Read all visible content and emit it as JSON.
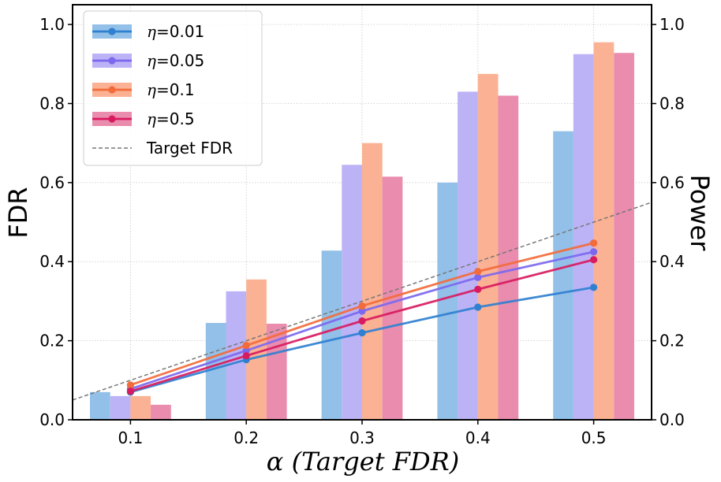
{
  "chart_data": {
    "type": "bar+line",
    "categories": [
      "0.1",
      "0.2",
      "0.3",
      "0.4",
      "0.5"
    ],
    "x": [
      0.1,
      0.2,
      0.3,
      0.4,
      0.5
    ],
    "xlabel": "α (Target FDR)",
    "ylabel_left": "FDR",
    "ylabel_right": "Power",
    "ylim": [
      0,
      1.05
    ],
    "xlim": [
      0.05,
      0.55
    ],
    "yticks": [
      "0.0",
      "0.2",
      "0.4",
      "0.6",
      "0.8",
      "1.0"
    ],
    "grid": true,
    "legend_position": "top-left",
    "series": [
      {
        "name_prefix": "η",
        "name_suffix": "=0.01",
        "color": "#2f80d0",
        "bar_color": "#93c0e8",
        "fdr": [
          0.07,
          0.152,
          0.22,
          0.285,
          0.335
        ],
        "power": [
          0.07,
          0.245,
          0.428,
          0.6,
          0.73
        ]
      },
      {
        "name_prefix": "η",
        "name_suffix": "=0.05",
        "color": "#7b68ee",
        "bar_color": "#bcb2f6",
        "fdr": [
          0.078,
          0.175,
          0.275,
          0.36,
          0.425
        ],
        "power": [
          0.06,
          0.325,
          0.645,
          0.83,
          0.925
        ]
      },
      {
        "name_prefix": "η",
        "name_suffix": "=0.1",
        "color": "#f26b3a",
        "bar_color": "#fbb193",
        "fdr": [
          0.088,
          0.188,
          0.288,
          0.375,
          0.447
        ],
        "power": [
          0.06,
          0.355,
          0.7,
          0.875,
          0.955
        ]
      },
      {
        "name_prefix": "η",
        "name_suffix": "=0.5",
        "color": "#d81b60",
        "bar_color": "#e98cad",
        "fdr": [
          0.072,
          0.162,
          0.25,
          0.33,
          0.405
        ],
        "power": [
          0.038,
          0.243,
          0.615,
          0.82,
          0.928
        ]
      }
    ],
    "target_line": {
      "name": "Target FDR",
      "color": "#777777"
    }
  }
}
